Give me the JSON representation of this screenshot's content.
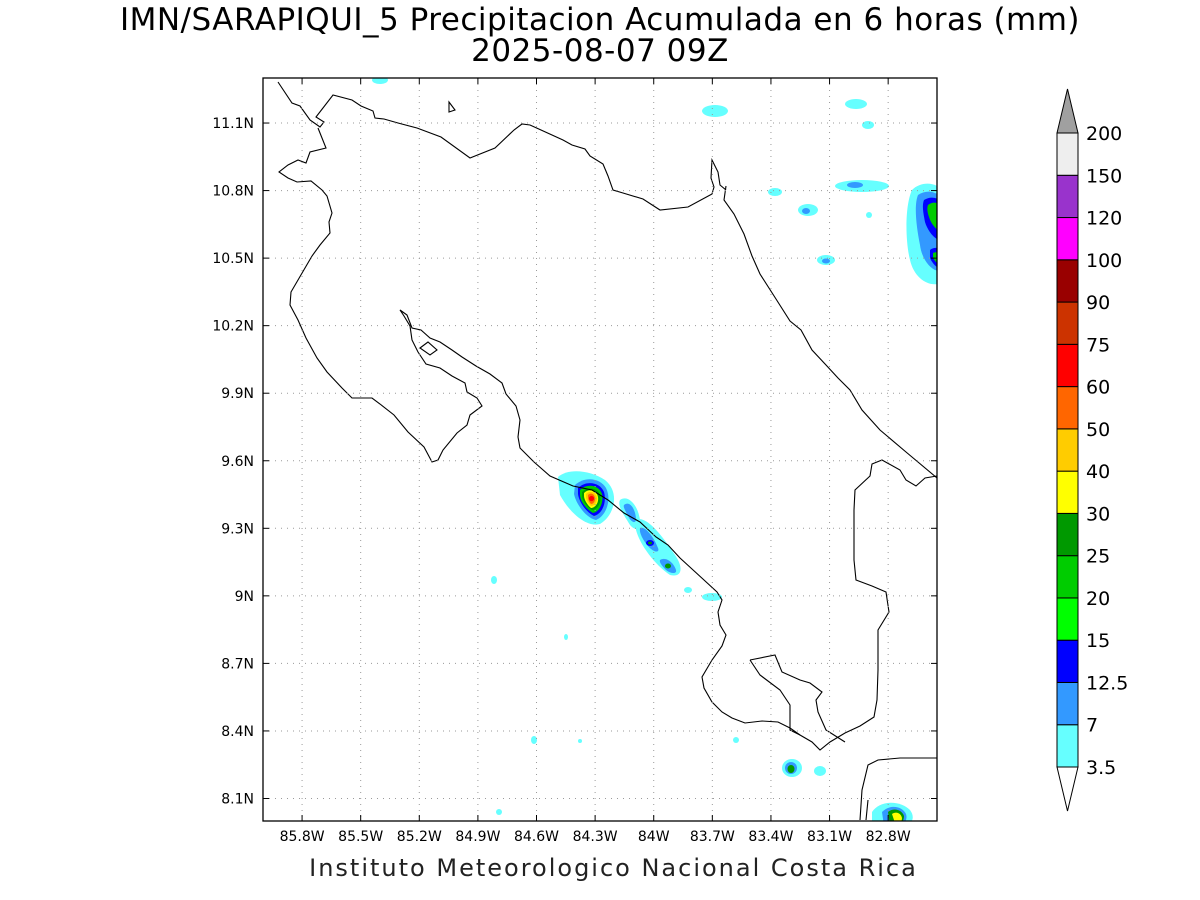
{
  "title": {
    "line1": "IMN/SARAPIQUI_5 Precipitacion Acumulada en 6 horas (mm)",
    "line2": "2025-08-07 09Z"
  },
  "footer": "Instituto Meteorologico Nacional Costa Rica",
  "map": {
    "lon_range": [
      -86.0,
      -82.55
    ],
    "lat_range": [
      8.0,
      11.3
    ],
    "lon_ticks": [
      {
        "value": -85.8,
        "label": "85.8W"
      },
      {
        "value": -85.5,
        "label": "85.5W"
      },
      {
        "value": -85.2,
        "label": "85.2W"
      },
      {
        "value": -84.9,
        "label": "84.9W"
      },
      {
        "value": -84.6,
        "label": "84.6W"
      },
      {
        "value": -84.3,
        "label": "84.3W"
      },
      {
        "value": -84.0,
        "label": "84W"
      },
      {
        "value": -83.7,
        "label": "83.7W"
      },
      {
        "value": -83.4,
        "label": "83.4W"
      },
      {
        "value": -83.1,
        "label": "83.1W"
      },
      {
        "value": -82.8,
        "label": "82.8W"
      }
    ],
    "lat_ticks": [
      {
        "value": 8.1,
        "label": "8.1N"
      },
      {
        "value": 8.4,
        "label": "8.4N"
      },
      {
        "value": 8.7,
        "label": "8.7N"
      },
      {
        "value": 9.0,
        "label": "9N"
      },
      {
        "value": 9.3,
        "label": "9.3N"
      },
      {
        "value": 9.6,
        "label": "9.6N"
      },
      {
        "value": 9.9,
        "label": "9.9N"
      },
      {
        "value": 10.2,
        "label": "10.2N"
      },
      {
        "value": 10.5,
        "label": "10.5N"
      },
      {
        "value": 10.8,
        "label": "10.8N"
      },
      {
        "value": 11.1,
        "label": "11.1N"
      }
    ],
    "grid": "dotted"
  },
  "colorbar": {
    "levels": [
      "3.5",
      "7",
      "12.5",
      "15",
      "20",
      "25",
      "30",
      "40",
      "50",
      "60",
      "75",
      "90",
      "100",
      "120",
      "150",
      "200"
    ],
    "colors": [
      "#66ffff",
      "#3399ff",
      "#0000ff",
      "#00ff00",
      "#00cc00",
      "#009900",
      "#ffff00",
      "#ffcc00",
      "#ff6600",
      "#ff0000",
      "#cc3300",
      "#990000",
      "#ff00ff",
      "#9933cc",
      "#eeeeee"
    ],
    "over_color": "#a0a0a0",
    "under_color": "#ffffff"
  }
}
